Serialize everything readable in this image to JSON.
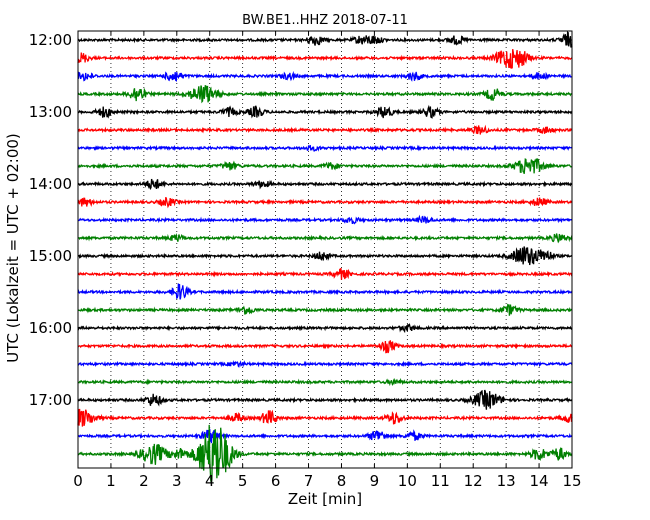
{
  "chart_data": {
    "type": "line",
    "title": "BW.BE1..HHZ 2018-07-11",
    "xlabel": "Zeit  [min]",
    "ylabel": "UTC (Lokalzeit = UTC + 02:00)",
    "xlim": [
      0,
      15
    ],
    "x_ticks": [
      "0",
      "1",
      "2",
      "3",
      "4",
      "5",
      "6",
      "7",
      "8",
      "9",
      "10",
      "11",
      "12",
      "13",
      "14",
      "15"
    ],
    "y_ticks": [
      {
        "label": "12:00",
        "row": 0
      },
      {
        "label": "13:00",
        "row": 4
      },
      {
        "label": "14:00",
        "row": 8
      },
      {
        "label": "15:00",
        "row": 12
      },
      {
        "label": "16:00",
        "row": 16
      },
      {
        "label": "17:00",
        "row": 20
      }
    ],
    "grid": "vertical dotted at each minute",
    "trace_interval_minutes": 15,
    "trace_colors": [
      "#000000",
      "#ff0000",
      "#0000ff",
      "#008000"
    ],
    "traces": [
      {
        "start": "12:00",
        "events": [
          [
            7.2,
            5
          ],
          [
            8.6,
            4
          ],
          [
            9.0,
            4
          ],
          [
            11.5,
            4
          ],
          [
            14.9,
            7
          ]
        ]
      },
      {
        "start": "12:15",
        "events": [
          [
            0.1,
            5
          ],
          [
            13.1,
            10
          ],
          [
            13.5,
            4
          ]
        ]
      },
      {
        "start": "12:30",
        "events": [
          [
            0.2,
            4
          ],
          [
            2.9,
            6
          ],
          [
            6.4,
            3
          ],
          [
            10.2,
            4
          ],
          [
            14.0,
            3
          ]
        ]
      },
      {
        "start": "12:45",
        "events": [
          [
            1.8,
            8
          ],
          [
            3.8,
            9
          ],
          [
            12.6,
            6
          ]
        ]
      },
      {
        "start": "13:00",
        "events": [
          [
            0.8,
            5
          ],
          [
            4.6,
            4
          ],
          [
            5.4,
            5
          ],
          [
            9.3,
            6
          ],
          [
            10.7,
            5
          ]
        ]
      },
      {
        "start": "13:15",
        "events": [
          [
            12.2,
            4
          ],
          [
            14.2,
            3
          ]
        ]
      },
      {
        "start": "13:30",
        "events": [
          [
            7.1,
            2
          ]
        ]
      },
      {
        "start": "13:45",
        "events": [
          [
            4.6,
            4
          ],
          [
            7.7,
            3
          ],
          [
            13.7,
            9
          ]
        ]
      },
      {
        "start": "14:00",
        "events": [
          [
            2.3,
            5
          ],
          [
            5.6,
            3
          ]
        ]
      },
      {
        "start": "14:15",
        "events": [
          [
            0.2,
            4
          ],
          [
            2.7,
            4
          ],
          [
            14.0,
            4
          ]
        ]
      },
      {
        "start": "14:30",
        "events": [
          [
            8.3,
            3
          ],
          [
            10.5,
            3
          ]
        ]
      },
      {
        "start": "14:45",
        "events": [
          [
            3.0,
            3
          ],
          [
            14.6,
            4
          ]
        ]
      },
      {
        "start": "15:00",
        "events": [
          [
            7.4,
            4
          ],
          [
            13.6,
            10
          ],
          [
            14.2,
            5
          ]
        ]
      },
      {
        "start": "15:15",
        "events": [
          [
            8.0,
            5
          ]
        ]
      },
      {
        "start": "15:30",
        "events": [
          [
            3.1,
            8
          ]
        ]
      },
      {
        "start": "15:45",
        "events": [
          [
            5.1,
            4
          ],
          [
            13.1,
            5
          ]
        ]
      },
      {
        "start": "16:00",
        "events": [
          [
            10.0,
            3
          ]
        ]
      },
      {
        "start": "16:15",
        "events": [
          [
            9.4,
            6
          ]
        ]
      },
      {
        "start": "16:30",
        "events": [
          [
            4.8,
            2
          ]
        ]
      },
      {
        "start": "16:45",
        "events": [
          [
            9.6,
            2
          ]
        ]
      },
      {
        "start": "17:00",
        "events": [
          [
            2.3,
            6
          ],
          [
            12.4,
            9
          ]
        ]
      },
      {
        "start": "17:15",
        "events": [
          [
            0.1,
            9
          ],
          [
            4.8,
            4
          ],
          [
            5.8,
            7
          ],
          [
            9.6,
            6
          ],
          [
            14.9,
            4
          ]
        ]
      },
      {
        "start": "17:30",
        "events": [
          [
            4.0,
            7
          ],
          [
            9.1,
            6
          ],
          [
            10.2,
            4
          ]
        ]
      },
      {
        "start": "17:45",
        "events": [
          [
            2.3,
            10
          ],
          [
            3.1,
            5
          ],
          [
            4.0,
            22
          ],
          [
            4.3,
            18
          ],
          [
            14.0,
            6
          ],
          [
            14.6,
            6
          ]
        ]
      }
    ]
  }
}
